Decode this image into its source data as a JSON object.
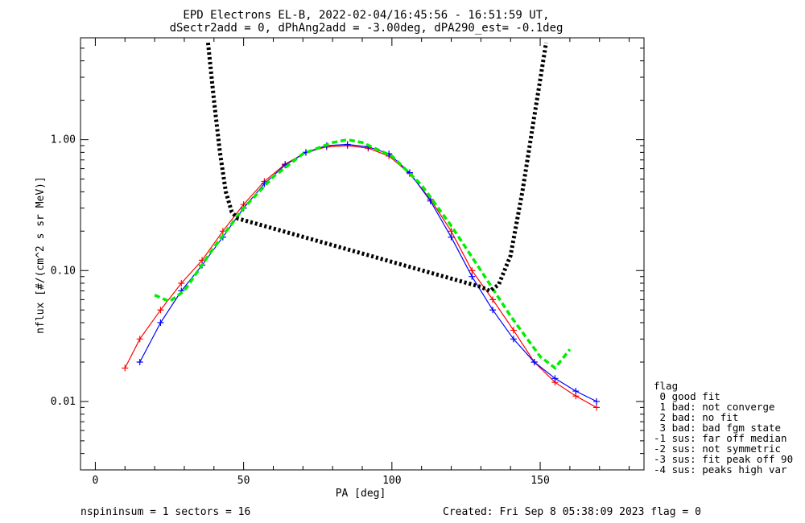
{
  "chart_data": {
    "type": "line",
    "title": "EPD Electrons EL-B, 2022-02-04/16:45:56 - 16:51:59 UT,",
    "subtitle": "dSectr2add = 0, dPhAng2add = -3.00deg, dPA290_est=  -0.1deg",
    "xlabel": "PA [deg]",
    "ylabel": "nflux [#/(cm^2 s sr MeV)]",
    "xlim": [
      -5,
      185
    ],
    "ylim": [
      0.003,
      6.0
    ],
    "yscale": "log",
    "x_ticks": [
      0,
      50,
      100,
      150
    ],
    "y_ticks": [
      0.01,
      0.1,
      1.0
    ],
    "y_tick_labels": [
      "0.01",
      "0.10",
      "1.00"
    ],
    "grid": false,
    "series": [
      {
        "color": "#ff0000",
        "x": [
          10,
          15,
          22,
          29,
          36,
          43,
          50,
          57,
          64,
          71,
          78,
          85,
          92,
          99,
          106,
          113,
          120,
          127,
          134,
          141,
          148,
          155,
          162,
          169
        ],
        "y": [
          0.018,
          0.03,
          0.05,
          0.08,
          0.12,
          0.2,
          0.32,
          0.48,
          0.65,
          0.8,
          0.88,
          0.9,
          0.86,
          0.75,
          0.55,
          0.35,
          0.2,
          0.1,
          0.06,
          0.035,
          0.02,
          0.014,
          0.011,
          0.009
        ]
      },
      {
        "color": "#0000ff",
        "x": [
          15,
          22,
          29,
          36,
          43,
          50,
          57,
          64,
          71,
          78,
          85,
          92,
          99,
          106,
          113,
          120,
          127,
          134,
          141,
          148,
          155,
          162,
          169
        ],
        "y": [
          0.02,
          0.04,
          0.07,
          0.11,
          0.18,
          0.3,
          0.46,
          0.64,
          0.8,
          0.9,
          0.92,
          0.88,
          0.78,
          0.56,
          0.34,
          0.18,
          0.09,
          0.05,
          0.03,
          0.02,
          0.015,
          0.012,
          0.01
        ]
      },
      {
        "color": "#00ee00",
        "style": "dashed",
        "x": [
          20,
          25,
          30,
          40,
          50,
          60,
          70,
          80,
          85,
          90,
          100,
          110,
          120,
          130,
          140,
          150,
          155,
          160
        ],
        "y": [
          0.065,
          0.058,
          0.07,
          0.15,
          0.3,
          0.52,
          0.78,
          0.95,
          1.0,
          0.95,
          0.75,
          0.45,
          0.22,
          0.1,
          0.045,
          0.022,
          0.018,
          0.025
        ]
      },
      {
        "color": "#000000",
        "style": "dotted",
        "x": [
          38,
          40,
          42,
          44,
          46,
          48,
          130,
          133,
          136,
          140,
          144,
          148,
          152
        ],
        "y": [
          5.5,
          2.0,
          0.8,
          0.4,
          0.28,
          0.25,
          0.075,
          0.07,
          0.078,
          0.13,
          0.4,
          1.5,
          5.5
        ]
      }
    ],
    "legend": {
      "position": "right",
      "title": "flag",
      "items": [
        " 0 good fit",
        " 1 bad: not converge",
        " 2 bad: no fit",
        " 3 bad: bad fgm state",
        "-1 sus: far off median",
        "-2 sus: not symmetric",
        "-3 sus: fit peak off 90",
        "-4 sus: peaks high var"
      ]
    }
  },
  "footer": {
    "left": "nspininsum =  1  sectors = 16",
    "right": "Created: Fri Sep  8 05:38:09 2023   flag = 0"
  },
  "colors": {
    "red": "#ff0000",
    "blue": "#0000ff",
    "green": "#00ee00",
    "black": "#000000"
  }
}
